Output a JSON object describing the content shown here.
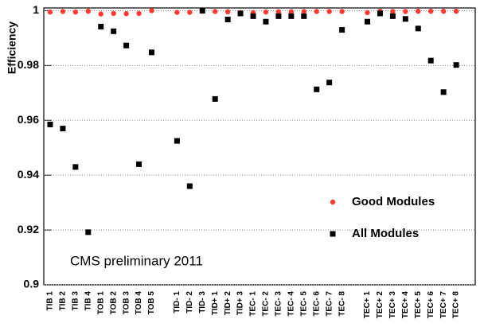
{
  "chart_data": {
    "type": "scatter",
    "ylabel": "Efficiency",
    "annotation": "CMS preliminary 2011",
    "categories": [
      "TIB 1",
      "TIB 2",
      "TIB 3",
      "TIB 4",
      "TOB 1",
      "TOB 2",
      "TOB 3",
      "TOB 4",
      "TOB 5",
      null,
      "TID- 1",
      "TID- 2",
      "TID- 3",
      "TID+ 1",
      "TID+ 2",
      "TID+ 3",
      "TEC- 1",
      "TEC- 2",
      "TEC- 3",
      "TEC- 4",
      "TEC- 5",
      "TEC- 6",
      "TEC- 7",
      "TEC- 8",
      null,
      "TEC+ 1",
      "TEC+ 2",
      "TEC+ 3",
      "TEC+ 4",
      "TEC+ 5",
      "TEC+ 6",
      "TEC+ 7",
      "TEC+ 8",
      null
    ],
    "series": [
      {
        "name": "Good Modules",
        "color": "#ff3b30",
        "marker": "circle",
        "values": [
          0.9995,
          0.9997,
          0.9995,
          0.9998,
          0.9988,
          0.999,
          0.9989,
          0.999,
          1.0,
          null,
          0.9994,
          0.9994,
          0.9998,
          0.9997,
          0.9996,
          0.9993,
          0.9993,
          0.9995,
          0.9996,
          0.9996,
          0.9997,
          0.9997,
          0.9997,
          0.9997,
          null,
          0.9993,
          0.9998,
          0.9997,
          0.9997,
          0.9998,
          0.9998,
          0.9998,
          0.9998,
          null
        ]
      },
      {
        "name": "All Modules",
        "color": "#000000",
        "marker": "square",
        "values": [
          0.9585,
          0.957,
          0.943,
          0.9192,
          0.9942,
          0.9925,
          0.9873,
          0.944,
          0.9848,
          null,
          0.9525,
          0.936,
          1.0,
          0.9678,
          0.9968,
          0.999,
          0.998,
          0.996,
          0.998,
          0.998,
          0.998,
          0.9713,
          0.9738,
          0.993,
          null,
          0.996,
          0.999,
          0.998,
          0.997,
          0.9935,
          0.9818,
          0.9703,
          0.9802,
          null
        ]
      }
    ],
    "ylim": [
      0.9,
      1.001
    ],
    "yticks": [
      0.9,
      0.92,
      0.94,
      0.96,
      0.98,
      1
    ],
    "grid": true,
    "legend": "lower right"
  }
}
